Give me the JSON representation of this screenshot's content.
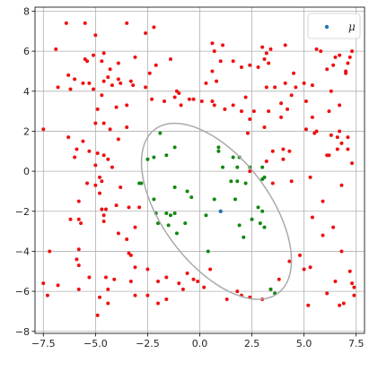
{
  "chart_data": {
    "type": "scatter",
    "title": "",
    "xlabel": "",
    "ylabel": "",
    "xlim": [
      -7.9,
      7.9
    ],
    "ylim": [
      -8.1,
      8.2
    ],
    "xticks": [
      -7.5,
      -5.0,
      -2.5,
      0.0,
      2.5,
      5.0,
      7.5
    ],
    "xtick_labels": [
      "−7.5",
      "−5.0",
      "−2.5",
      "0.0",
      "2.5",
      "5.0",
      "7.5"
    ],
    "yticks": [
      -8,
      -6,
      -4,
      -2,
      0,
      2,
      4,
      6,
      8
    ],
    "ytick_labels": [
      "−8",
      "−6",
      "−4",
      "−2",
      "0",
      "2",
      "4",
      "6",
      "8"
    ],
    "grid": true,
    "legend": {
      "position": "top-right",
      "entries": [
        {
          "label": "μ",
          "color": "#1f77b4"
        }
      ]
    },
    "colors": {
      "outside": "#ee1111",
      "inside": "#118811",
      "mu": "#1f77b4",
      "ellipse": "#aaaaaa"
    },
    "mu": [
      1.0,
      -2.0
    ],
    "ellipse": {
      "center": [
        0.8,
        -2.0
      ],
      "semi_major": 5.05,
      "semi_minor": 2.6,
      "angle_deg": -55
    },
    "series": [
      {
        "color": "#ee1111",
        "points": [
          [
            -6.4,
            7.4
          ],
          [
            -5.5,
            7.4
          ],
          [
            -3.5,
            7.4
          ],
          [
            -2.2,
            7.2
          ],
          [
            -2.6,
            6.9
          ],
          [
            -5.0,
            6.8
          ],
          [
            -6.9,
            6.1
          ],
          [
            -5.1,
            5.8
          ],
          [
            -4.6,
            5.9
          ],
          [
            -4.7,
            5.5
          ],
          [
            -5.5,
            5.6
          ],
          [
            -5.4,
            5.5
          ],
          [
            -3.9,
            5.4
          ],
          [
            -4.3,
            5.1
          ],
          [
            -3.1,
            5.7
          ],
          [
            -2.1,
            5.3
          ],
          [
            -1.4,
            5.6
          ],
          [
            -2.4,
            4.9
          ],
          [
            -6.3,
            4.8
          ],
          [
            -6.0,
            4.6
          ],
          [
            -5.6,
            4.4
          ],
          [
            -5.3,
            4.4
          ],
          [
            -4.6,
            4.5
          ],
          [
            -4.4,
            4.7
          ],
          [
            -4.2,
            4.3
          ],
          [
            -3.9,
            4.6
          ],
          [
            -3.3,
            4.5
          ],
          [
            -3.2,
            4.3
          ],
          [
            -3.8,
            4.4
          ],
          [
            -5.1,
            4.1
          ],
          [
            -6.8,
            4.2
          ],
          [
            -6.2,
            4.1
          ],
          [
            -4.7,
            3.8
          ],
          [
            -2.6,
            4.2
          ],
          [
            -1.1,
            4.0
          ],
          [
            -1.0,
            3.9
          ],
          [
            -1.2,
            3.7
          ],
          [
            -1.7,
            3.5
          ],
          [
            -2.3,
            3.6
          ],
          [
            -4.9,
            3.1
          ],
          [
            -4.0,
            3.2
          ],
          [
            -3.5,
            3.3
          ],
          [
            -5.0,
            2.4
          ],
          [
            -4.6,
            2.4
          ],
          [
            -4.3,
            2.1
          ],
          [
            -3.5,
            2.2
          ],
          [
            -3.9,
            1.6
          ],
          [
            -6.3,
            1.7
          ],
          [
            -7.5,
            2.1
          ],
          [
            -5.6,
            1.5
          ],
          [
            -5.9,
            1.1
          ],
          [
            -5.3,
            1.0
          ],
          [
            -6.0,
            0.7
          ],
          [
            -4.9,
            0.9
          ],
          [
            -5.0,
            0.3
          ],
          [
            -4.6,
            0.8
          ],
          [
            -4.4,
            0.6
          ],
          [
            -4.2,
            0.2
          ],
          [
            -4.8,
            -0.3
          ],
          [
            -5.0,
            -0.7
          ],
          [
            -5.4,
            -0.6
          ],
          [
            -4.7,
            -0.5
          ],
          [
            -3.8,
            -0.8
          ],
          [
            -4.8,
            -1.1
          ],
          [
            -4.7,
            -1.9
          ],
          [
            -4.0,
            -1.7
          ],
          [
            -5.8,
            -1.5
          ],
          [
            -6.2,
            -2.4
          ],
          [
            -5.8,
            -2.4
          ],
          [
            -5.7,
            -2.6
          ],
          [
            -4.6,
            -2.2
          ],
          [
            -4.6,
            -2.5
          ],
          [
            -4.5,
            -1.9
          ],
          [
            -3.4,
            -1.8
          ],
          [
            -2.9,
            -1.8
          ],
          [
            -3.1,
            -2.8
          ],
          [
            -3.9,
            -3.1
          ],
          [
            -3.4,
            -4.1
          ],
          [
            -3.3,
            -4.2
          ],
          [
            -3.5,
            -3.4
          ],
          [
            -5.8,
            -3.9
          ],
          [
            -7.2,
            -4.0
          ],
          [
            -5.9,
            -4.4
          ],
          [
            -5.8,
            -4.7
          ],
          [
            -5.3,
            -5.3
          ],
          [
            -4.5,
            -5.3
          ],
          [
            -4.1,
            -5.4
          ],
          [
            -4.4,
            -5.9
          ],
          [
            -4.8,
            -6.3
          ],
          [
            -5.8,
            -5.9
          ],
          [
            -6.8,
            -5.7
          ],
          [
            -7.5,
            -5.6
          ],
          [
            -7.3,
            -6.2
          ],
          [
            -4.4,
            -6.6
          ],
          [
            -4.9,
            -7.2
          ],
          [
            -3.1,
            -6.2
          ],
          [
            -3.3,
            -5.5
          ],
          [
            -3.1,
            -4.8
          ],
          [
            -2.5,
            -4.9
          ],
          [
            -2.5,
            -6.2
          ],
          [
            -1.6,
            -5.3
          ],
          [
            -2.0,
            -5.5
          ],
          [
            -2.0,
            -6.6
          ],
          [
            -1.6,
            -6.4
          ],
          [
            -1.0,
            -5.6
          ],
          [
            -0.8,
            -5.9
          ],
          [
            -0.3,
            -5.4
          ],
          [
            -0.1,
            -5.5
          ],
          [
            -0.6,
            -5.1
          ],
          [
            0.5,
            -4.9
          ],
          [
            0.2,
            -5.8
          ],
          [
            1.3,
            -6.4
          ],
          [
            1.8,
            -6.0
          ],
          [
            2.0,
            -6.2
          ],
          [
            2.4,
            -6.3
          ],
          [
            3.0,
            -6.4
          ],
          [
            3.4,
            -5.9
          ],
          [
            3.8,
            -5.4
          ],
          [
            4.3,
            -4.5
          ],
          [
            4.8,
            -4.2
          ],
          [
            5.0,
            -4.9
          ],
          [
            5.3,
            -4.8
          ],
          [
            5.2,
            -6.7
          ],
          [
            6.1,
            -6.1
          ],
          [
            6.5,
            -5.5
          ],
          [
            7.2,
            -5.0
          ],
          [
            7.3,
            -5.6
          ],
          [
            7.4,
            -5.8
          ],
          [
            6.7,
            -6.7
          ],
          [
            6.9,
            -6.6
          ],
          [
            7.4,
            -6.2
          ],
          [
            6.8,
            -4.0
          ],
          [
            5.9,
            -3.2
          ],
          [
            6.4,
            -2.8
          ],
          [
            5.4,
            -2.3
          ],
          [
            5.9,
            -1.5
          ],
          [
            6.8,
            -0.7
          ],
          [
            5.3,
            -0.3
          ],
          [
            4.4,
            -0.5
          ],
          [
            6.2,
            0.8
          ],
          [
            6.1,
            0.8
          ],
          [
            4.3,
            1.0
          ],
          [
            4.0,
            1.1
          ],
          [
            3.5,
            1.0
          ],
          [
            4.0,
            0.6
          ],
          [
            3.2,
            0.5
          ],
          [
            2.4,
            0.0
          ],
          [
            3.5,
            -0.6
          ],
          [
            2.3,
            1.9
          ],
          [
            5.1,
            2.1
          ],
          [
            5.5,
            1.9
          ],
          [
            5.6,
            2.0
          ],
          [
            6.3,
            1.8
          ],
          [
            6.7,
            2.0
          ],
          [
            6.6,
            1.7
          ],
          [
            6.8,
            1.4
          ],
          [
            7.1,
            1.7
          ],
          [
            7.1,
            1.1
          ],
          [
            6.6,
            1.1
          ],
          [
            7.3,
            0.4
          ],
          [
            5.4,
            2.7
          ],
          [
            6.2,
            3.0
          ],
          [
            6.7,
            3.3
          ],
          [
            5.1,
            3.5
          ],
          [
            5.4,
            4.3
          ],
          [
            5.0,
            4.4
          ],
          [
            4.6,
            4.2
          ],
          [
            4.4,
            3.8
          ],
          [
            4.1,
            4.4
          ],
          [
            4.5,
            4.9
          ],
          [
            6.3,
            4.0
          ],
          [
            7.0,
            4.9
          ],
          [
            7.0,
            5.0
          ],
          [
            7.1,
            5.4
          ],
          [
            6.1,
            5.1
          ],
          [
            6.4,
            5.3
          ],
          [
            6.7,
            5.8
          ],
          [
            6.5,
            5.7
          ],
          [
            7.2,
            5.7
          ],
          [
            7.3,
            6.0
          ],
          [
            5.8,
            6.0
          ],
          [
            5.6,
            6.1
          ],
          [
            4.1,
            6.3
          ],
          [
            3.0,
            6.2
          ],
          [
            3.4,
            6.1
          ],
          [
            3.2,
            5.9
          ],
          [
            3.1,
            5.6
          ],
          [
            3.3,
            5.4
          ],
          [
            2.8,
            5.2
          ],
          [
            1.6,
            5.5
          ],
          [
            1.0,
            5.5
          ],
          [
            0.6,
            6.4
          ],
          [
            0.7,
            6.0
          ],
          [
            1.1,
            6.3
          ],
          [
            2.0,
            5.2
          ],
          [
            2.4,
            5.3
          ],
          [
            0.6,
            5.0
          ],
          [
            0.8,
            4.5
          ],
          [
            0.3,
            4.4
          ],
          [
            -0.5,
            3.6
          ],
          [
            -0.3,
            3.6
          ],
          [
            0.1,
            3.5
          ],
          [
            0.6,
            3.5
          ],
          [
            0.7,
            3.3
          ],
          [
            1.2,
            3.1
          ],
          [
            1.6,
            3.3
          ],
          [
            2.2,
            3.7
          ],
          [
            3.2,
            4.2
          ],
          [
            3.6,
            4.2
          ],
          [
            3.9,
            3.4
          ],
          [
            4.2,
            3.1
          ],
          [
            3.3,
            3.0
          ],
          [
            3.9,
            2.7
          ],
          [
            3.1,
            2.2
          ],
          [
            2.6,
            3.0
          ],
          [
            2.4,
            2.6
          ],
          [
            2.0,
            3.0
          ],
          [
            -0.9,
            3.3
          ]
        ]
      },
      {
        "color": "#118811",
        "points": [
          [
            -2.8,
            -0.6
          ],
          [
            -2.9,
            -0.6
          ],
          [
            -2.5,
            0.6
          ],
          [
            -2.2,
            0.7
          ],
          [
            -1.6,
            0.8
          ],
          [
            -1.9,
            1.9
          ],
          [
            -1.2,
            1.2
          ],
          [
            0.9,
            1.0
          ],
          [
            0.9,
            1.2
          ],
          [
            1.9,
            0.7
          ],
          [
            1.8,
            0.2
          ],
          [
            1.6,
            0.7
          ],
          [
            1.1,
            0.2
          ],
          [
            1.8,
            -0.5
          ],
          [
            2.4,
            0.2
          ],
          [
            3.0,
            0.2
          ],
          [
            3.1,
            -0.3
          ],
          [
            3.0,
            -0.4
          ],
          [
            2.2,
            -0.6
          ],
          [
            1.5,
            -0.5
          ],
          [
            0.7,
            -1.4
          ],
          [
            1.7,
            -1.4
          ],
          [
            2.8,
            -1.8
          ],
          [
            3.0,
            -2.0
          ],
          [
            1.9,
            -2.7
          ],
          [
            2.1,
            -3.3
          ],
          [
            3.1,
            -2.8
          ],
          [
            2.9,
            -2.6
          ],
          [
            2.5,
            -2.4
          ],
          [
            0.3,
            -2.2
          ],
          [
            -0.4,
            -1.3
          ],
          [
            -1.2,
            -0.8
          ],
          [
            -0.6,
            -1.0
          ],
          [
            -1.2,
            -2.1
          ],
          [
            -1.6,
            -2.1
          ],
          [
            -2.1,
            -2.1
          ],
          [
            -1.4,
            -2.2
          ],
          [
            -2.0,
            -2.6
          ],
          [
            -1.5,
            -2.7
          ],
          [
            -0.7,
            -2.6
          ],
          [
            -1.1,
            -3.1
          ],
          [
            -2.2,
            -1.4
          ],
          [
            0.4,
            -4.0
          ],
          [
            3.6,
            -6.1
          ],
          [
            3.4,
            -5.9
          ]
        ]
      }
    ]
  }
}
